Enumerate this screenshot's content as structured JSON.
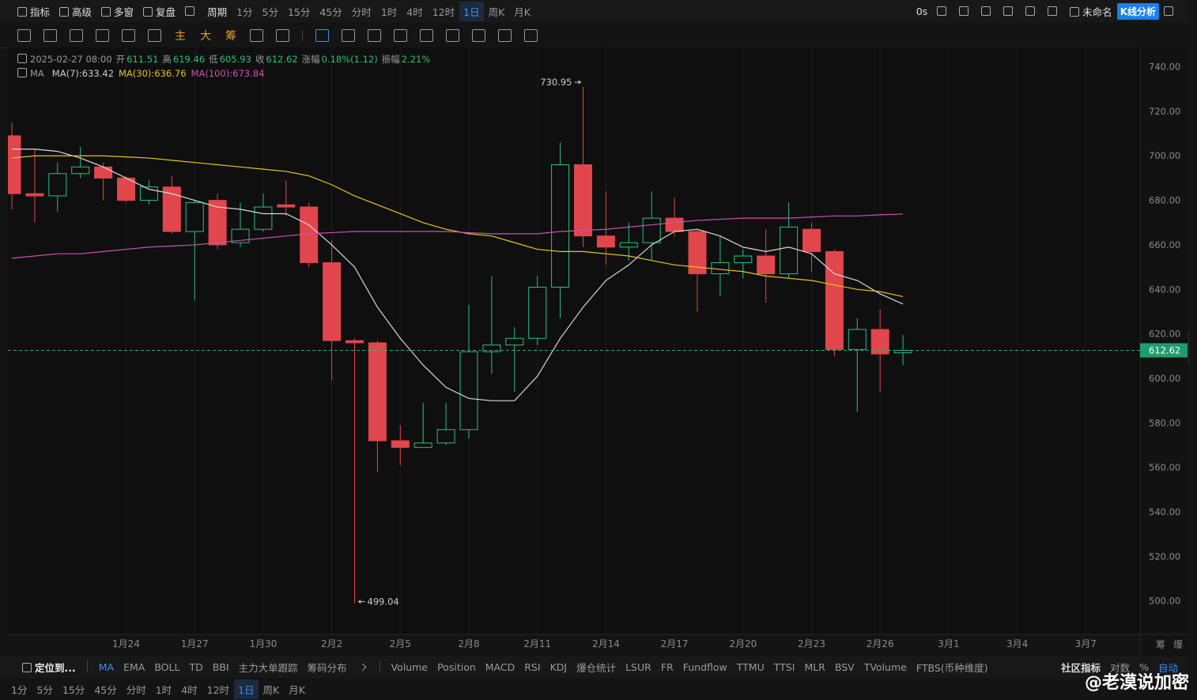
{
  "toolbar": {
    "left": [
      "指标",
      "高级",
      "多窗",
      "复盘"
    ],
    "period_label": "周期",
    "periods": [
      "1分",
      "5分",
      "15分",
      "45分",
      "分时",
      "1时",
      "4时",
      "12时",
      "1日",
      "周K",
      "月K"
    ],
    "active_period": 8,
    "timer": "0s",
    "layout_name": "未命名",
    "analysis_button": "K线分析"
  },
  "drawing_tools": [
    "主",
    "大",
    "筹"
  ],
  "legend": {
    "date": "2025-02-27 08:00",
    "open_label": "开",
    "high_label": "高",
    "low_label": "低",
    "close_label": "收",
    "change_label": "涨幅",
    "change": "0.18%(1.12)",
    "amplitude_label": "振幅",
    "amplitude": "2.21%",
    "ma_label": "MA",
    "separator": ":"
  },
  "chart_data": {
    "type": "candlestick",
    "categories": [
      null,
      null,
      null,
      null,
      null,
      "1月24",
      null,
      null,
      "1月27",
      null,
      null,
      "1月30",
      null,
      null,
      "2月2",
      null,
      null,
      "2月5",
      null,
      null,
      "2月8",
      null,
      null,
      "2月11",
      null,
      null,
      "2月14",
      null,
      null,
      "2月17",
      null,
      null,
      "2月20",
      null,
      null,
      "2月23",
      null,
      null,
      "2月26",
      null
    ],
    "future_ticks": [
      "3月1",
      "3月4",
      "3月7"
    ],
    "open": [
      709,
      683,
      682,
      692,
      695,
      690,
      680,
      686,
      666,
      680,
      661,
      667,
      678,
      677,
      652,
      617,
      616,
      572,
      569,
      571,
      577,
      612,
      615,
      618,
      641,
      696,
      664,
      659,
      661,
      672,
      666,
      647,
      652,
      655,
      647,
      667,
      657,
      613,
      622,
      611.51
    ],
    "high": [
      715,
      703,
      697,
      704,
      697,
      691,
      689,
      691,
      680,
      683,
      679,
      683,
      689,
      679,
      662,
      618,
      617,
      579,
      589,
      589,
      633,
      646,
      623,
      646,
      706,
      730.95,
      684,
      670,
      684,
      681,
      667,
      664,
      658,
      667,
      679,
      670,
      658,
      627,
      631,
      619.46
    ],
    "low": [
      676,
      670,
      675,
      690,
      680,
      679,
      678,
      665,
      635,
      658,
      659,
      666,
      673,
      650,
      599,
      499.04,
      558,
      561,
      569,
      570,
      573,
      602,
      594,
      615,
      627,
      659,
      651,
      653,
      653,
      664,
      630,
      637,
      645,
      634,
      645,
      648,
      610,
      585,
      594,
      605.93
    ],
    "close": [
      683,
      682,
      692,
      695,
      690,
      680,
      686,
      666,
      679,
      660,
      667,
      677,
      677,
      652,
      617,
      616,
      572,
      569,
      571,
      577,
      612,
      615,
      618,
      641,
      696,
      664,
      659,
      661,
      672,
      666,
      647,
      652,
      655,
      647,
      668,
      657,
      613,
      622,
      611,
      612.62
    ],
    "up_color": "#2ebd85",
    "down_color": "#e0464c",
    "lines": [
      {
        "name": "MA(7)",
        "color": "#d9d9d9",
        "values": [
          703,
          703,
          702,
          699,
          695,
          690,
          685,
          683,
          680,
          677,
          676,
          674,
          674,
          669,
          660,
          650,
          632,
          618,
          606,
          596,
          591,
          590,
          590,
          601,
          618,
          632,
          644,
          651,
          660,
          666,
          667,
          664,
          659,
          657,
          659,
          656,
          647,
          644,
          638,
          633.42
        ]
      },
      {
        "name": "MA(30)",
        "color": "#e8c21a",
        "values": [
          699,
          700,
          700,
          700,
          700,
          699.5,
          699,
          698,
          697,
          696,
          695,
          694,
          693,
          691,
          687,
          682,
          678,
          674,
          670,
          667,
          665,
          664,
          661,
          658,
          657,
          657,
          656,
          655,
          653,
          651,
          650,
          649,
          648,
          646,
          645,
          644,
          642,
          640,
          639,
          636.76
        ]
      },
      {
        "name": "MA(100)",
        "color": "#d04fb0",
        "values": [
          654,
          655,
          656,
          656,
          657,
          658,
          659,
          659.5,
          660,
          661,
          662,
          663,
          664,
          665,
          665.5,
          666,
          666,
          666,
          666,
          666,
          665.5,
          665,
          665,
          665,
          666,
          666.5,
          667,
          668,
          669,
          670,
          671,
          671.5,
          672,
          672,
          672,
          672.5,
          673,
          673,
          673.5,
          673.84
        ]
      }
    ],
    "ylim": [
      485,
      748
    ],
    "yticks": [
      {
        "value": 500,
        "label": "500.00"
      },
      {
        "value": 520,
        "label": "520.00"
      },
      {
        "value": 540,
        "label": "540.00"
      },
      {
        "value": 560,
        "label": "560.00"
      },
      {
        "value": 580,
        "label": "580.00"
      },
      {
        "value": 600,
        "label": "600.00"
      },
      {
        "value": 620,
        "label": "620.00"
      },
      {
        "value": 640,
        "label": "640.00"
      },
      {
        "value": 660,
        "label": "660.00"
      },
      {
        "value": 680,
        "label": "680.00"
      },
      {
        "value": 700,
        "label": "700.00"
      },
      {
        "value": 720,
        "label": "720.00"
      },
      {
        "value": 740,
        "label": "740.00"
      }
    ],
    "grid": true,
    "axis_corner": [
      "筹",
      "爆"
    ]
  },
  "indicator_bar": {
    "locate": "定位到...",
    "main": [
      "MA",
      "EMA",
      "BOLL",
      "TD",
      "BBI",
      "主力大单跟踪",
      "筹码分布"
    ],
    "sub": [
      "Volume",
      "Position",
      "MACD",
      "RSI",
      "KDJ",
      "爆仓统计",
      "LSUR",
      "FR",
      "Fundflow",
      "TTMU",
      "TTSI",
      "MLR",
      "BSV",
      "TVolume",
      "FTBS(币种维度)"
    ],
    "right": [
      "社区指标",
      "对数",
      "%",
      "自动"
    ]
  },
  "watermark": "@老漠说加密"
}
